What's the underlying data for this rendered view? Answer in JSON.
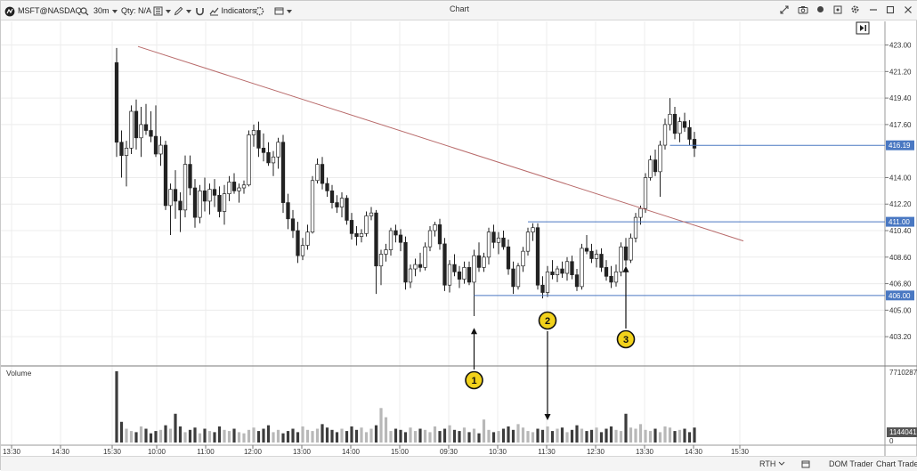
{
  "toolbar": {
    "symbol": "MSFT@NASDAQ",
    "interval": "30m",
    "qty": "Qty: N/A",
    "indicators": "Indicators",
    "title": "Chart"
  },
  "statusbar": {
    "session": "RTH",
    "dom_trader": "DOM Trader",
    "chart_trader": "Chart Trader"
  },
  "colors": {
    "trendline": "#b86a6a",
    "level_line": "#4a78c2",
    "label_bg": "#4a78c2",
    "badge": "#f2d21b"
  },
  "chart_data": [
    {
      "type": "candlestick",
      "x_tick_labels": [
        "13:30",
        "14:30",
        "15:30",
        "10:00",
        "11:00",
        "12:00",
        "13:00",
        "14:00",
        "15:00",
        "09:30",
        "10:30",
        "11:30",
        "12:30",
        "13:30",
        "14:30",
        "15:30"
      ],
      "y_tick_labels": [
        "423.00",
        "421.20",
        "419.40",
        "417.60",
        "414.00",
        "412.20",
        "410.40",
        "408.60",
        "406.80",
        "405.00",
        "403.20"
      ],
      "ylim": [
        402.0,
        424.0
      ],
      "price_labels": [
        "416.19",
        "411.00",
        "406.00"
      ],
      "levels": [
        {
          "price": 416.19,
          "from_bar": 113
        },
        {
          "price": 411.0,
          "from_bar": 84
        },
        {
          "price": 406.0,
          "from_bar": 73
        }
      ],
      "trendline": {
        "from": {
          "bar": 8,
          "price": 422.9
        },
        "to": {
          "bar": 128,
          "price": 409.7
        }
      },
      "annotations": [
        {
          "label": "1",
          "bar": 73,
          "arrow_to_price": 403.8,
          "direction": "up"
        },
        {
          "label": "2",
          "bar": 88,
          "arrow_to_price": 400.0,
          "direction": "down"
        },
        {
          "label": "3",
          "bar": 104,
          "arrow_to_price": 408.0,
          "direction": "up"
        }
      ],
      "bars": [
        {
          "o": 421.8,
          "h": 422.8,
          "l": 415.4,
          "c": 416.4
        },
        {
          "o": 416.4,
          "h": 417.2,
          "l": 414.0,
          "c": 415.5
        },
        {
          "o": 415.5,
          "h": 416.5,
          "l": 413.4,
          "c": 416.0
        },
        {
          "o": 416.0,
          "h": 418.9,
          "l": 415.6,
          "c": 418.5
        },
        {
          "o": 418.5,
          "h": 419.3,
          "l": 415.9,
          "c": 416.7
        },
        {
          "o": 416.7,
          "h": 418.8,
          "l": 415.4,
          "c": 417.6
        },
        {
          "o": 417.6,
          "h": 419.0,
          "l": 416.9,
          "c": 417.2
        },
        {
          "o": 417.2,
          "h": 418.5,
          "l": 416.4,
          "c": 416.8
        },
        {
          "o": 416.8,
          "h": 418.9,
          "l": 415.4,
          "c": 415.6
        },
        {
          "o": 415.6,
          "h": 416.8,
          "l": 414.8,
          "c": 416.2
        },
        {
          "o": 416.2,
          "h": 416.5,
          "l": 411.8,
          "c": 412.1
        },
        {
          "o": 412.1,
          "h": 413.6,
          "l": 410.1,
          "c": 413.2
        },
        {
          "o": 413.2,
          "h": 414.5,
          "l": 411.2,
          "c": 412.4
        },
        {
          "o": 412.4,
          "h": 413.0,
          "l": 410.3,
          "c": 411.8
        },
        {
          "o": 411.8,
          "h": 415.5,
          "l": 411.3,
          "c": 414.9
        },
        {
          "o": 414.9,
          "h": 415.5,
          "l": 412.8,
          "c": 413.3
        },
        {
          "o": 413.3,
          "h": 413.9,
          "l": 410.6,
          "c": 411.3
        },
        {
          "o": 411.3,
          "h": 413.5,
          "l": 410.9,
          "c": 413.1
        },
        {
          "o": 413.1,
          "h": 414.0,
          "l": 411.7,
          "c": 412.4
        },
        {
          "o": 412.4,
          "h": 413.6,
          "l": 411.5,
          "c": 413.2
        },
        {
          "o": 413.2,
          "h": 413.9,
          "l": 412.0,
          "c": 412.8
        },
        {
          "o": 412.8,
          "h": 413.4,
          "l": 411.3,
          "c": 411.7
        },
        {
          "o": 411.7,
          "h": 413.5,
          "l": 410.8,
          "c": 412.9
        },
        {
          "o": 412.9,
          "h": 414.1,
          "l": 412.4,
          "c": 413.7
        },
        {
          "o": 413.7,
          "h": 414.3,
          "l": 412.9,
          "c": 413.1
        },
        {
          "o": 413.1,
          "h": 413.6,
          "l": 412.3,
          "c": 413.3
        },
        {
          "o": 413.3,
          "h": 413.8,
          "l": 412.9,
          "c": 413.5
        },
        {
          "o": 413.5,
          "h": 417.2,
          "l": 413.4,
          "c": 416.9
        },
        {
          "o": 416.9,
          "h": 417.6,
          "l": 416.1,
          "c": 417.2
        },
        {
          "o": 417.2,
          "h": 417.8,
          "l": 415.4,
          "c": 416.0
        },
        {
          "o": 416.0,
          "h": 417.0,
          "l": 415.1,
          "c": 415.7
        },
        {
          "o": 415.7,
          "h": 416.4,
          "l": 414.8,
          "c": 415.0
        },
        {
          "o": 415.0,
          "h": 415.8,
          "l": 414.1,
          "c": 415.4
        },
        {
          "o": 415.4,
          "h": 416.7,
          "l": 414.6,
          "c": 416.4
        },
        {
          "o": 416.4,
          "h": 416.9,
          "l": 411.6,
          "c": 412.3
        },
        {
          "o": 412.3,
          "h": 412.9,
          "l": 410.5,
          "c": 411.2
        },
        {
          "o": 411.2,
          "h": 411.8,
          "l": 409.9,
          "c": 410.4
        },
        {
          "o": 410.4,
          "h": 411.0,
          "l": 408.2,
          "c": 408.7
        },
        {
          "o": 408.7,
          "h": 409.9,
          "l": 408.4,
          "c": 409.4
        },
        {
          "o": 409.4,
          "h": 410.8,
          "l": 409.1,
          "c": 410.3
        },
        {
          "o": 410.3,
          "h": 414.1,
          "l": 410.2,
          "c": 413.8
        },
        {
          "o": 413.8,
          "h": 415.3,
          "l": 413.6,
          "c": 414.9
        },
        {
          "o": 414.9,
          "h": 415.4,
          "l": 413.2,
          "c": 413.6
        },
        {
          "o": 413.6,
          "h": 414.0,
          "l": 412.7,
          "c": 413.1
        },
        {
          "o": 413.1,
          "h": 413.5,
          "l": 411.9,
          "c": 412.3
        },
        {
          "o": 412.3,
          "h": 412.8,
          "l": 411.6,
          "c": 412.0
        },
        {
          "o": 412.0,
          "h": 413.0,
          "l": 411.3,
          "c": 412.6
        },
        {
          "o": 412.6,
          "h": 412.8,
          "l": 410.8,
          "c": 411.1
        },
        {
          "o": 411.1,
          "h": 411.6,
          "l": 409.8,
          "c": 410.2
        },
        {
          "o": 410.2,
          "h": 410.7,
          "l": 409.4,
          "c": 410.0
        },
        {
          "o": 410.0,
          "h": 410.5,
          "l": 409.6,
          "c": 410.2
        },
        {
          "o": 410.2,
          "h": 411.7,
          "l": 410.0,
          "c": 411.4
        },
        {
          "o": 411.4,
          "h": 412.0,
          "l": 411.1,
          "c": 411.6
        },
        {
          "o": 411.6,
          "h": 411.8,
          "l": 406.1,
          "c": 408.0
        },
        {
          "o": 408.0,
          "h": 409.1,
          "l": 406.7,
          "c": 408.8
        },
        {
          "o": 408.8,
          "h": 409.5,
          "l": 408.3,
          "c": 409.1
        },
        {
          "o": 409.1,
          "h": 410.6,
          "l": 408.7,
          "c": 410.4
        },
        {
          "o": 410.4,
          "h": 410.8,
          "l": 409.6,
          "c": 410.1
        },
        {
          "o": 410.1,
          "h": 410.5,
          "l": 409.0,
          "c": 409.6
        },
        {
          "o": 409.6,
          "h": 410.0,
          "l": 406.4,
          "c": 406.9
        },
        {
          "o": 406.9,
          "h": 408.1,
          "l": 406.5,
          "c": 407.8
        },
        {
          "o": 407.8,
          "h": 408.5,
          "l": 407.3,
          "c": 408.1
        },
        {
          "o": 408.1,
          "h": 408.9,
          "l": 407.6,
          "c": 407.9
        },
        {
          "o": 407.9,
          "h": 409.6,
          "l": 407.7,
          "c": 409.3
        },
        {
          "o": 409.3,
          "h": 410.7,
          "l": 409.0,
          "c": 410.4
        },
        {
          "o": 410.4,
          "h": 411.0,
          "l": 410.0,
          "c": 410.8
        },
        {
          "o": 410.8,
          "h": 411.2,
          "l": 409.1,
          "c": 409.5
        },
        {
          "o": 409.5,
          "h": 409.9,
          "l": 406.3,
          "c": 406.7
        },
        {
          "o": 406.7,
          "h": 408.4,
          "l": 406.2,
          "c": 408.1
        },
        {
          "o": 408.1,
          "h": 408.8,
          "l": 407.3,
          "c": 407.6
        },
        {
          "o": 407.6,
          "h": 408.0,
          "l": 406.5,
          "c": 407.1
        },
        {
          "o": 407.1,
          "h": 408.3,
          "l": 406.8,
          "c": 407.9
        },
        {
          "o": 407.9,
          "h": 408.3,
          "l": 406.7,
          "c": 406.9
        },
        {
          "o": 406.9,
          "h": 409.1,
          "l": 404.6,
          "c": 408.7
        },
        {
          "o": 408.7,
          "h": 409.6,
          "l": 407.6,
          "c": 407.9
        },
        {
          "o": 407.9,
          "h": 408.9,
          "l": 407.6,
          "c": 408.6
        },
        {
          "o": 408.6,
          "h": 410.6,
          "l": 408.1,
          "c": 410.3
        },
        {
          "o": 410.3,
          "h": 410.8,
          "l": 409.2,
          "c": 409.6
        },
        {
          "o": 409.6,
          "h": 410.3,
          "l": 408.8,
          "c": 409.9
        },
        {
          "o": 409.9,
          "h": 410.4,
          "l": 409.1,
          "c": 409.3
        },
        {
          "o": 409.3,
          "h": 409.8,
          "l": 407.4,
          "c": 407.8
        },
        {
          "o": 407.8,
          "h": 408.3,
          "l": 406.1,
          "c": 406.6
        },
        {
          "o": 406.6,
          "h": 408.2,
          "l": 406.4,
          "c": 408.0
        },
        {
          "o": 408.0,
          "h": 409.3,
          "l": 407.6,
          "c": 409.0
        },
        {
          "o": 409.0,
          "h": 410.6,
          "l": 408.7,
          "c": 410.3
        },
        {
          "o": 410.3,
          "h": 410.9,
          "l": 409.7,
          "c": 410.6
        },
        {
          "o": 410.6,
          "h": 410.9,
          "l": 406.4,
          "c": 406.7
        },
        {
          "o": 406.7,
          "h": 407.3,
          "l": 405.8,
          "c": 406.2
        },
        {
          "o": 406.2,
          "h": 408.0,
          "l": 405.9,
          "c": 407.6
        },
        {
          "o": 407.6,
          "h": 408.4,
          "l": 407.1,
          "c": 407.4
        },
        {
          "o": 407.4,
          "h": 408.0,
          "l": 406.9,
          "c": 407.8
        },
        {
          "o": 407.8,
          "h": 408.3,
          "l": 407.2,
          "c": 407.5
        },
        {
          "o": 407.5,
          "h": 408.6,
          "l": 407.0,
          "c": 408.3
        },
        {
          "o": 408.3,
          "h": 408.7,
          "l": 407.1,
          "c": 407.4
        },
        {
          "o": 407.4,
          "h": 407.8,
          "l": 406.3,
          "c": 406.6
        },
        {
          "o": 406.6,
          "h": 409.5,
          "l": 406.4,
          "c": 409.2
        },
        {
          "o": 409.2,
          "h": 410.1,
          "l": 408.8,
          "c": 409.0
        },
        {
          "o": 409.0,
          "h": 409.5,
          "l": 408.2,
          "c": 408.5
        },
        {
          "o": 408.5,
          "h": 409.1,
          "l": 407.9,
          "c": 408.8
        },
        {
          "o": 408.8,
          "h": 409.2,
          "l": 407.6,
          "c": 407.9
        },
        {
          "o": 407.9,
          "h": 408.4,
          "l": 407.0,
          "c": 407.3
        },
        {
          "o": 407.3,
          "h": 408.0,
          "l": 406.5,
          "c": 406.9
        },
        {
          "o": 406.9,
          "h": 408.1,
          "l": 406.6,
          "c": 407.6
        },
        {
          "o": 407.6,
          "h": 409.6,
          "l": 407.3,
          "c": 409.3
        },
        {
          "o": 409.3,
          "h": 409.9,
          "l": 408.0,
          "c": 408.4
        },
        {
          "o": 408.4,
          "h": 410.2,
          "l": 408.2,
          "c": 409.9
        },
        {
          "o": 409.9,
          "h": 411.6,
          "l": 409.6,
          "c": 411.3
        },
        {
          "o": 411.3,
          "h": 412.1,
          "l": 410.8,
          "c": 411.9
        },
        {
          "o": 411.9,
          "h": 414.3,
          "l": 411.6,
          "c": 414.0
        },
        {
          "o": 414.0,
          "h": 415.5,
          "l": 413.8,
          "c": 415.2
        },
        {
          "o": 415.2,
          "h": 415.9,
          "l": 414.1,
          "c": 414.4
        },
        {
          "o": 414.4,
          "h": 416.5,
          "l": 412.7,
          "c": 416.2
        },
        {
          "o": 416.2,
          "h": 418.0,
          "l": 415.9,
          "c": 417.6
        },
        {
          "o": 417.6,
          "h": 419.4,
          "l": 417.2,
          "c": 418.3
        },
        {
          "o": 418.3,
          "h": 418.8,
          "l": 416.6,
          "c": 417.0
        },
        {
          "o": 417.0,
          "h": 418.1,
          "l": 416.4,
          "c": 417.8
        },
        {
          "o": 417.8,
          "h": 418.4,
          "l": 417.1,
          "c": 417.4
        },
        {
          "o": 417.4,
          "h": 417.9,
          "l": 416.2,
          "c": 416.6
        },
        {
          "o": 416.6,
          "h": 417.1,
          "l": 415.4,
          "c": 416.0
        }
      ],
      "volume": {
        "scale_labels": [
          "7710287",
          "1144041",
          "0"
        ],
        "values": [
          62,
          18,
          12,
          10,
          9,
          14,
          12,
          8,
          10,
          11,
          15,
          12,
          25,
          14,
          9,
          11,
          13,
          8,
          12,
          10,
          9,
          14,
          11,
          10,
          12,
          9,
          8,
          11,
          13,
          10,
          12,
          15,
          9,
          11,
          8,
          10,
          12,
          9,
          14,
          11,
          10,
          12,
          16,
          13,
          11,
          9,
          12,
          10,
          14,
          11,
          13,
          9,
          12,
          15,
          30,
          22,
          10,
          12,
          11,
          9,
          13,
          10,
          12,
          11,
          9,
          14,
          10,
          12,
          15,
          11,
          10,
          13,
          9,
          12,
          8,
          20,
          11,
          9,
          10,
          12,
          14,
          11,
          16,
          13,
          10,
          9,
          12,
          11,
          14,
          10,
          12,
          13,
          9,
          11,
          15,
          12,
          10,
          11,
          13,
          9,
          12,
          14,
          11,
          10,
          25,
          13,
          12,
          16,
          11,
          10,
          12,
          9,
          14,
          13,
          10,
          11,
          12,
          9,
          13,
          10,
          12,
          11,
          14
        ]
      }
    }
  ]
}
